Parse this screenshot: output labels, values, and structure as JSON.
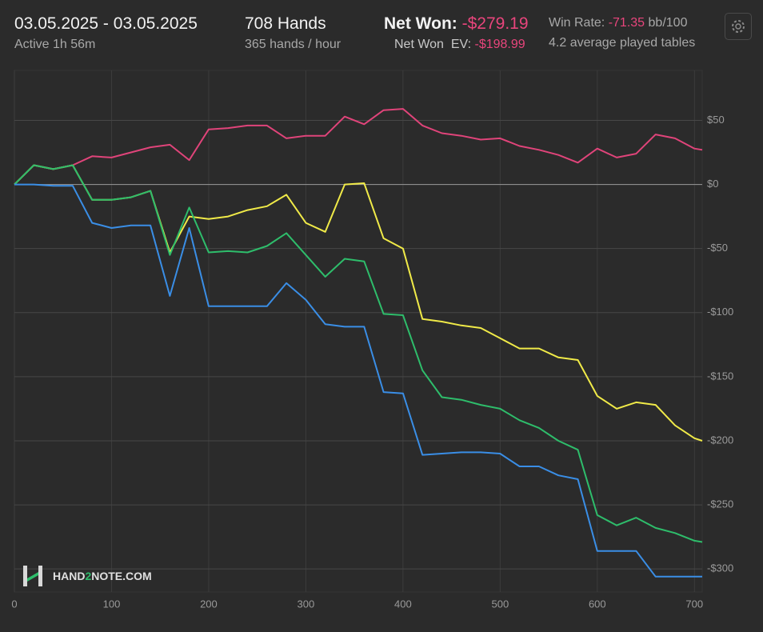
{
  "header": {
    "date_range": "03.05.2025 - 03.05.2025",
    "active": "Active 1h 56m",
    "hands": "708 Hands",
    "hands_rate": "365 hands / hour",
    "net_won_label": "Net Won:",
    "net_won_value": "-$279.19",
    "net_won_ev_label": "Net Won  EV:",
    "net_won_ev_value": "-$198.99",
    "win_rate_label": "Win Rate:",
    "win_rate_value": "-71.35",
    "win_rate_unit": "bb/100",
    "tables": "4.2 average played tables"
  },
  "watermark": {
    "part1": "HAND",
    "part2": "2",
    "part3": "NOTE.COM"
  },
  "chart_data": {
    "type": "line",
    "x": [
      0,
      20,
      40,
      60,
      80,
      100,
      120,
      140,
      160,
      180,
      200,
      220,
      240,
      260,
      280,
      300,
      320,
      340,
      360,
      380,
      400,
      420,
      440,
      460,
      480,
      500,
      520,
      540,
      560,
      580,
      600,
      620,
      640,
      660,
      680,
      700,
      708
    ],
    "series": [
      {
        "color": "#e0447a",
        "values": [
          0,
          15,
          12,
          15,
          22,
          21,
          25,
          29,
          31,
          19,
          43,
          44,
          46,
          46,
          36,
          38,
          38,
          53,
          47,
          58,
          59,
          46,
          40,
          38,
          35,
          36,
          30,
          27,
          23,
          17,
          28,
          21,
          24,
          39,
          36,
          28,
          27
        ]
      },
      {
        "color": "#f0ea48",
        "values": [
          0,
          15,
          12,
          15,
          -12,
          -12,
          -10,
          -5,
          -53,
          -25,
          -27,
          -25,
          -20,
          -17,
          -8,
          -30,
          -37,
          0,
          1,
          -42,
          -50,
          -105,
          -107,
          -110,
          -112,
          -120,
          -128,
          -128,
          -135,
          -137,
          -165,
          -175,
          -170,
          -172,
          -188,
          -198,
          -200
        ]
      },
      {
        "color": "#2ebd6b",
        "values": [
          0,
          15,
          12,
          15,
          -12,
          -12,
          -10,
          -5,
          -55,
          -18,
          -53,
          -52,
          -53,
          -48,
          -38,
          -55,
          -72,
          -58,
          -60,
          -101,
          -102,
          -145,
          -166,
          -168,
          -172,
          -175,
          -184,
          -190,
          -200,
          -207,
          -258,
          -266,
          -260,
          -268,
          -272,
          -278,
          -279
        ]
      },
      {
        "color": "#3a8ee6",
        "values": [
          0,
          0,
          -1,
          -1,
          -30,
          -34,
          -32,
          -32,
          -87,
          -34,
          -95,
          -95,
          -95,
          -95,
          -77,
          -90,
          -109,
          -111,
          -111,
          -162,
          -163,
          -211,
          -210,
          -209,
          -209,
          -210,
          -220,
          -220,
          -227,
          -230,
          -286,
          -286,
          -286,
          -306,
          -306,
          -306,
          -306
        ]
      }
    ],
    "xlim": [
      0,
      708
    ],
    "xticks": [
      0,
      100,
      200,
      300,
      400,
      500,
      600,
      700
    ],
    "ylim": [
      -318,
      89
    ],
    "yticks": [
      {
        "value": 50,
        "label": "$50"
      },
      {
        "value": 0,
        "label": "$0"
      },
      {
        "value": -50,
        "label": "-$50"
      },
      {
        "value": -100,
        "label": "-$100"
      },
      {
        "value": -150,
        "label": "-$150"
      },
      {
        "value": -200,
        "label": "-$200"
      },
      {
        "value": -250,
        "label": "-$250"
      },
      {
        "value": -300,
        "label": "-$300"
      }
    ],
    "grid": true
  }
}
